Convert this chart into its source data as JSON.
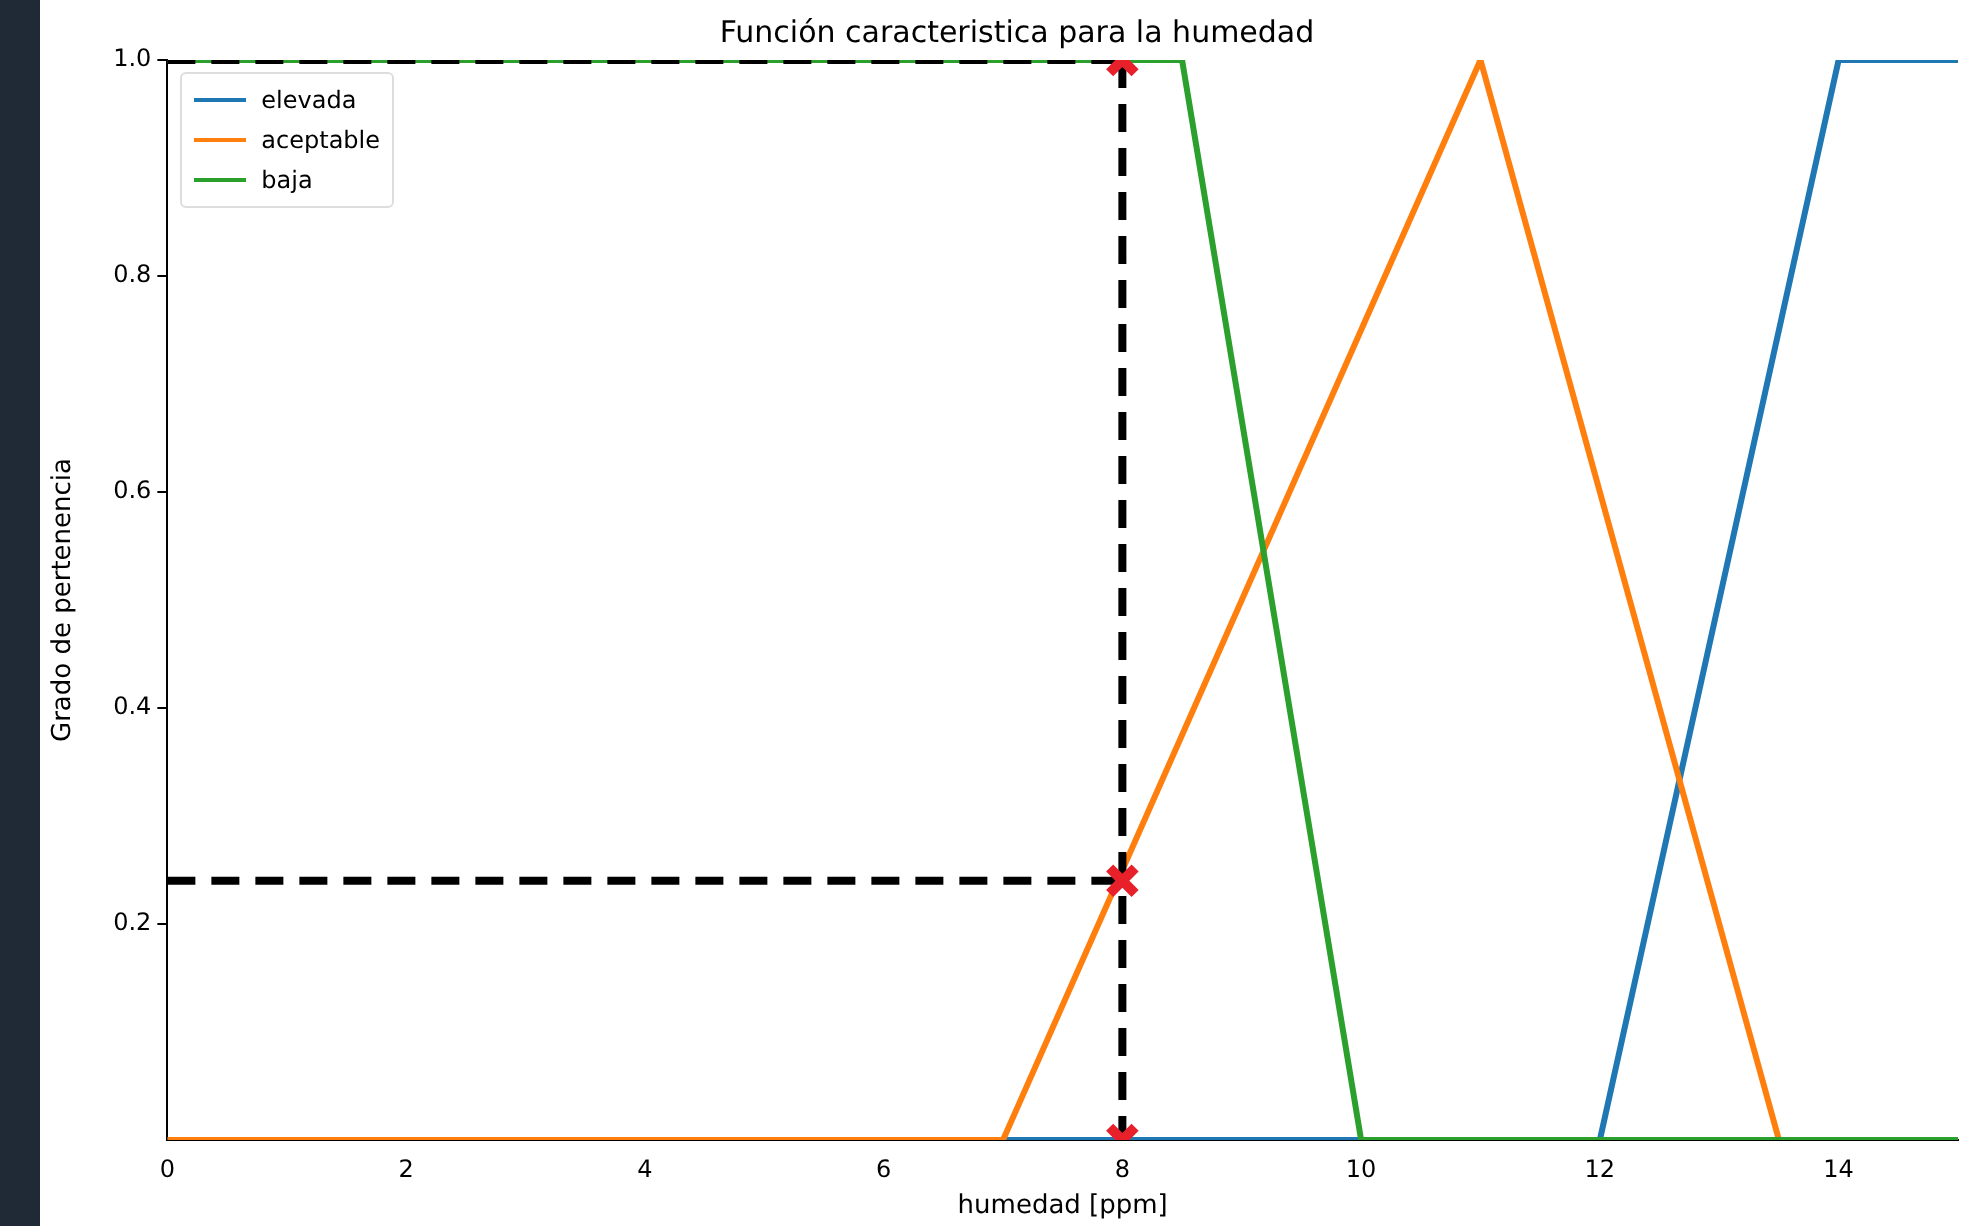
{
  "chart_data": {
    "type": "line",
    "title": "Función caracteristica para la humedad",
    "xlabel": "humedad [ppm]",
    "ylabel": "Grado de pertenencia",
    "xlim": [
      0,
      15
    ],
    "xticks": [
      0,
      2,
      4,
      6,
      8,
      10,
      12,
      14
    ],
    "ylim": [
      0,
      1
    ],
    "yticks": [
      {
        "value": 0.2,
        "label": "0.2"
      },
      {
        "value": 0.4,
        "label": "0.4"
      },
      {
        "value": 0.6,
        "label": "0.6"
      },
      {
        "value": 0.8,
        "label": "0.8"
      },
      {
        "value": 1,
        "label": "1.0"
      }
    ],
    "grid": false,
    "legend": "top left",
    "marker": "none",
    "line_style": "solid",
    "series": [
      {
        "name": "elevada",
        "color": "#1f77b4",
        "x": [
          0,
          12,
          14,
          15
        ],
        "values": [
          0,
          0,
          1,
          1
        ]
      },
      {
        "name": "aceptable",
        "color": "#ff7f0e",
        "x": [
          0,
          7,
          11,
          13.5,
          15
        ],
        "values": [
          0,
          0,
          1,
          0,
          0
        ]
      },
      {
        "name": "baja",
        "color": "#2ca02c",
        "x": [
          0,
          8.5,
          10,
          15
        ],
        "values": [
          1,
          1,
          0,
          0
        ]
      },
      {
        "color": "#000000",
        "line_style": "dashed",
        "x": [
          0,
          8
        ],
        "values": [
          1,
          1
        ]
      },
      {
        "color": "#000000",
        "line_style": "dashed",
        "x": [
          8,
          8
        ],
        "values": [
          1,
          0
        ]
      },
      {
        "color": "#000000",
        "line_style": "dashed",
        "x": [
          0,
          8
        ],
        "values": [
          0.24,
          0.24
        ]
      },
      {
        "type": "scatter",
        "marker": "cross",
        "color": "#e8202a",
        "x": [
          8,
          8,
          8
        ],
        "values": [
          1,
          0.24,
          0
        ]
      }
    ]
  }
}
